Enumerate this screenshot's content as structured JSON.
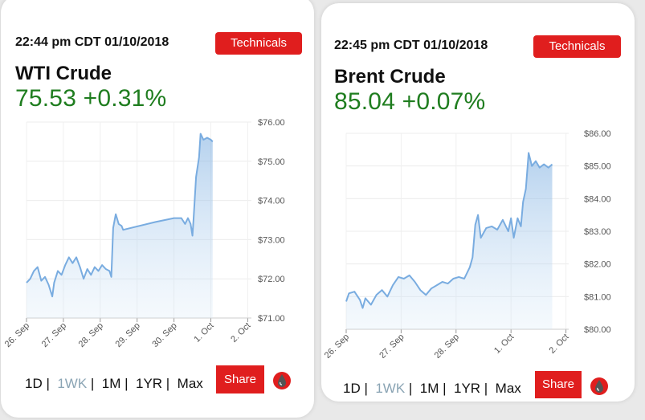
{
  "cards": [
    {
      "timestamp": "22:44 pm CDT 01/10/2018",
      "technicals_label": "Technicals",
      "name": "WTI Crude",
      "price_change": "75.53 +0.31%",
      "ranges": [
        "1D",
        "1WK",
        "1M",
        "1YR",
        "Max"
      ],
      "active_range": "1WK",
      "share_label": "Share",
      "logo_icon": "drop-logo-icon",
      "colors": {
        "accent": "#e01e1e",
        "price": "#1f7d1f",
        "line": "#79ace0",
        "fill": "#d6e8f7"
      }
    },
    {
      "timestamp": "22:45 pm CDT 01/10/2018",
      "technicals_label": "Technicals",
      "name": "Brent Crude",
      "price_change": "85.04 +0.07%",
      "ranges": [
        "1D",
        "1WK",
        "1M",
        "1YR",
        "Max"
      ],
      "active_range": "1WK",
      "share_label": "Share",
      "logo_icon": "drop-logo-icon",
      "colors": {
        "accent": "#e01e1e",
        "price": "#1f7d1f",
        "line": "#79ace0",
        "fill": "#d6e8f7"
      }
    }
  ],
  "chart_data": [
    {
      "type": "area",
      "title": "WTI Crude",
      "xlabel": "",
      "ylabel": "",
      "x_ticks": [
        "26. Sep",
        "27. Sep",
        "28. Sep",
        "29. Sep",
        "30. Sep",
        "1. Oct",
        "2. Oct"
      ],
      "y_ticks": [
        "$71.00",
        "$72.00",
        "$73.00",
        "$74.00",
        "$75.00",
        "$76.00"
      ],
      "xlim": [
        0,
        6.1
      ],
      "ylim": [
        71,
        76
      ],
      "grid": true,
      "y_axis_position": "right",
      "series": [
        {
          "values": [
            [
              0.0,
              71.9
            ],
            [
              0.1,
              72.0
            ],
            [
              0.2,
              72.2
            ],
            [
              0.3,
              72.3
            ],
            [
              0.4,
              71.95
            ],
            [
              0.5,
              72.05
            ],
            [
              0.6,
              71.85
            ],
            [
              0.7,
              71.55
            ],
            [
              0.75,
              71.9
            ],
            [
              0.85,
              72.2
            ],
            [
              0.95,
              72.1
            ],
            [
              1.05,
              72.35
            ],
            [
              1.15,
              72.55
            ],
            [
              1.25,
              72.4
            ],
            [
              1.35,
              72.55
            ],
            [
              1.45,
              72.3
            ],
            [
              1.55,
              72.0
            ],
            [
              1.65,
              72.25
            ],
            [
              1.75,
              72.1
            ],
            [
              1.85,
              72.3
            ],
            [
              1.95,
              72.2
            ],
            [
              2.05,
              72.35
            ],
            [
              2.15,
              72.25
            ],
            [
              2.25,
              72.2
            ],
            [
              2.3,
              72.05
            ],
            [
              2.35,
              73.3
            ],
            [
              2.42,
              73.65
            ],
            [
              2.5,
              73.4
            ],
            [
              2.58,
              73.35
            ],
            [
              2.62,
              73.25
            ],
            [
              3.5,
              73.45
            ],
            [
              4.0,
              73.55
            ],
            [
              4.2,
              73.55
            ],
            [
              4.3,
              73.4
            ],
            [
              4.38,
              73.55
            ],
            [
              4.45,
              73.4
            ],
            [
              4.5,
              73.1
            ],
            [
              4.53,
              73.5
            ],
            [
              4.6,
              74.6
            ],
            [
              4.68,
              75.1
            ],
            [
              4.72,
              75.7
            ],
            [
              4.8,
              75.55
            ],
            [
              4.9,
              75.6
            ],
            [
              5.0,
              75.55
            ],
            [
              5.05,
              75.5
            ]
          ]
        }
      ]
    },
    {
      "type": "area",
      "title": "Brent Crude",
      "xlabel": "",
      "ylabel": "",
      "x_ticks": [
        "26. Sep",
        "27. Sep",
        "28. Sep",
        "1. Oct",
        "2. Oct"
      ],
      "y_ticks": [
        "$80.00",
        "$81.00",
        "$82.00",
        "$83.00",
        "$84.00",
        "$85.00",
        "$86.00"
      ],
      "xlim": [
        0,
        4.05
      ],
      "ylim": [
        80,
        86
      ],
      "grid": true,
      "y_axis_position": "right",
      "series": [
        {
          "values": [
            [
              0.0,
              80.85
            ],
            [
              0.05,
              81.1
            ],
            [
              0.15,
              81.15
            ],
            [
              0.25,
              80.9
            ],
            [
              0.3,
              80.65
            ],
            [
              0.35,
              80.95
            ],
            [
              0.45,
              80.75
            ],
            [
              0.55,
              81.05
            ],
            [
              0.65,
              81.2
            ],
            [
              0.75,
              81.0
            ],
            [
              0.85,
              81.35
            ],
            [
              0.95,
              81.6
            ],
            [
              1.05,
              81.55
            ],
            [
              1.15,
              81.65
            ],
            [
              1.25,
              81.45
            ],
            [
              1.35,
              81.2
            ],
            [
              1.45,
              81.05
            ],
            [
              1.55,
              81.25
            ],
            [
              1.65,
              81.35
            ],
            [
              1.75,
              81.45
            ],
            [
              1.85,
              81.4
            ],
            [
              1.95,
              81.55
            ],
            [
              2.05,
              81.6
            ],
            [
              2.15,
              81.55
            ],
            [
              2.25,
              81.9
            ],
            [
              2.3,
              82.2
            ],
            [
              2.35,
              83.2
            ],
            [
              2.4,
              83.5
            ],
            [
              2.45,
              82.8
            ],
            [
              2.55,
              83.1
            ],
            [
              2.65,
              83.15
            ],
            [
              2.75,
              83.05
            ],
            [
              2.85,
              83.35
            ],
            [
              2.95,
              83.0
            ],
            [
              3.0,
              83.4
            ],
            [
              3.05,
              82.8
            ],
            [
              3.12,
              83.4
            ],
            [
              3.18,
              83.15
            ],
            [
              3.22,
              83.9
            ],
            [
              3.27,
              84.3
            ],
            [
              3.32,
              85.4
            ],
            [
              3.38,
              85.0
            ],
            [
              3.45,
              85.15
            ],
            [
              3.52,
              84.95
            ],
            [
              3.6,
              85.05
            ],
            [
              3.68,
              84.95
            ],
            [
              3.75,
              85.05
            ]
          ]
        }
      ]
    }
  ]
}
